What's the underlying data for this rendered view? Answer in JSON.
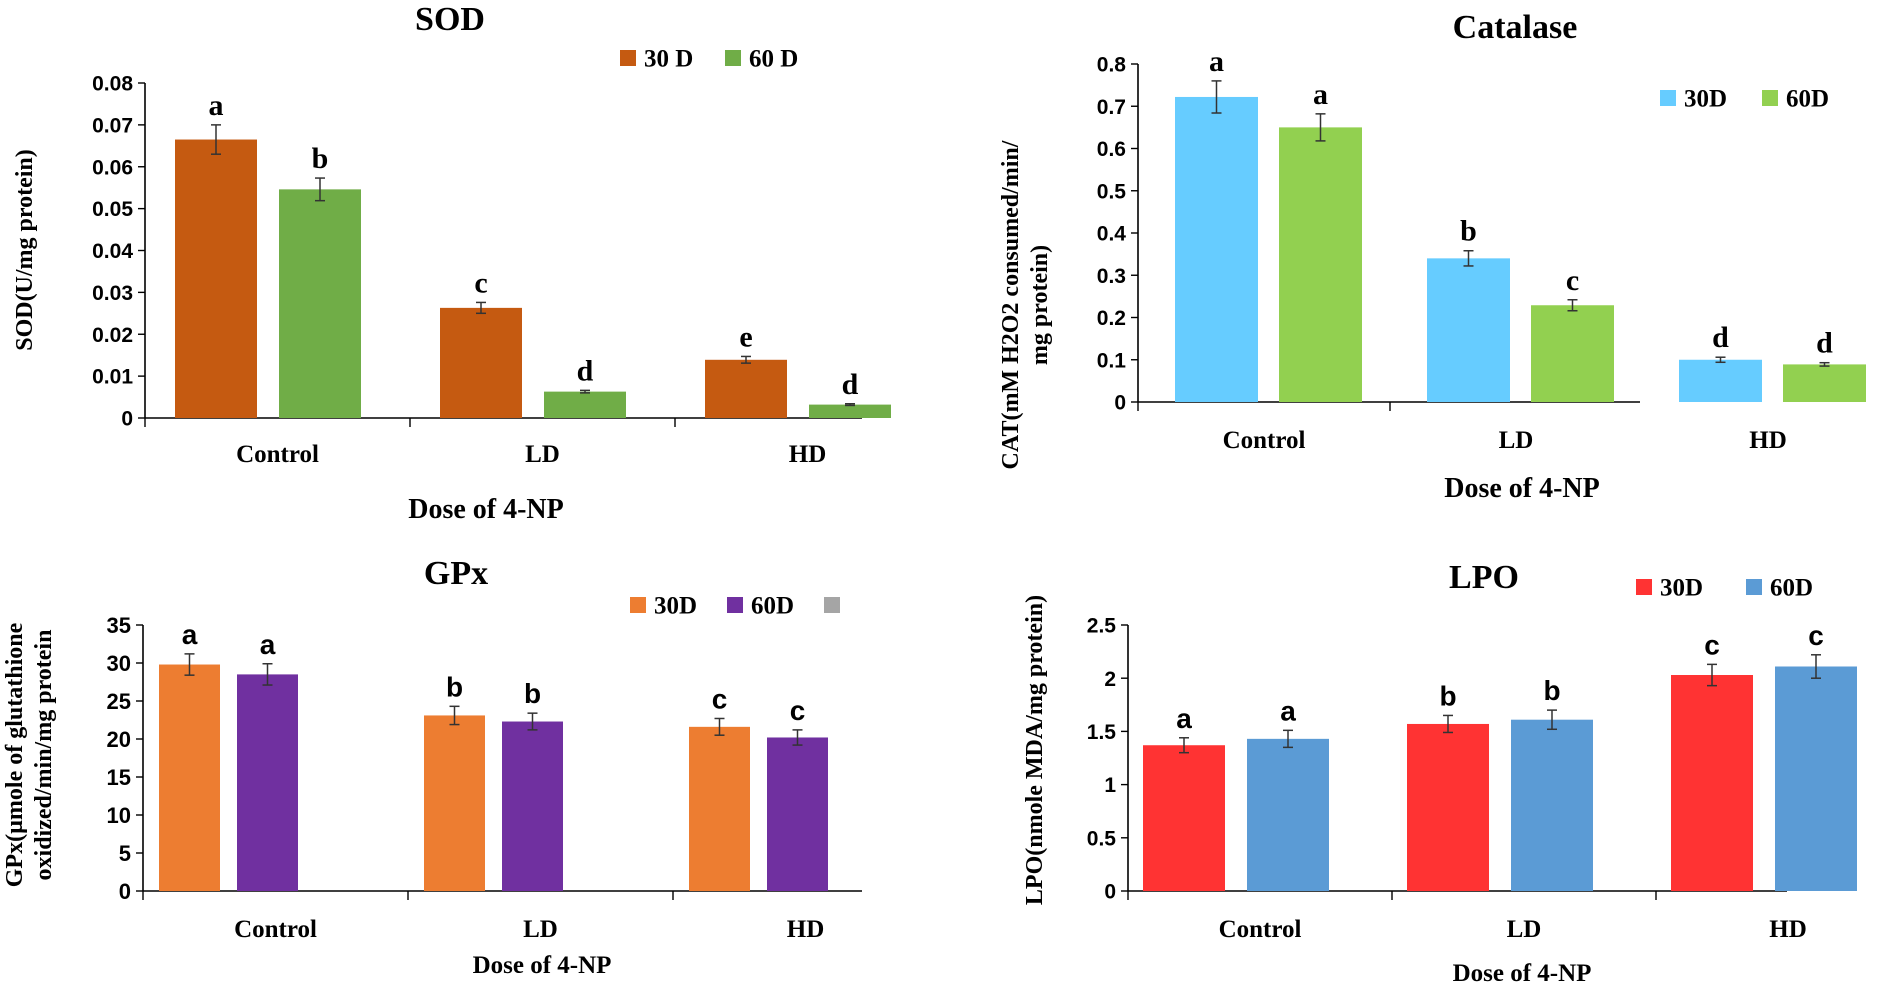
{
  "chart_data": [
    {
      "id": "sod",
      "type": "bar",
      "title": "SOD",
      "xlabel": "Dose of 4-NP",
      "ylabel": "SOD(U/mg protein)",
      "categories": [
        "Control",
        "LD",
        "HD"
      ],
      "ylim": [
        0,
        0.08
      ],
      "yticks": [
        "0",
        "0.01",
        "0.02",
        "0.03",
        "0.04",
        "0.05",
        "0.06",
        "0.07",
        "0.08"
      ],
      "series": [
        {
          "name": "30 D",
          "color": "#C55A11",
          "values": [
            0.0665,
            0.0263,
            0.0139
          ],
          "errors": [
            0.0035,
            0.0013,
            0.0008
          ],
          "letters": [
            "a",
            "c",
            "e"
          ]
        },
        {
          "name": "60 D",
          "color": "#70AD47",
          "values": [
            0.0546,
            0.0063,
            0.0032
          ],
          "errors": [
            0.0027,
            0.0003,
            0.0002
          ],
          "letters": [
            "b",
            "d",
            "d"
          ]
        }
      ],
      "legend": [
        {
          "label": "30 D",
          "color": "#C55A11"
        },
        {
          "label": "60 D",
          "color": "#70AD47"
        }
      ]
    },
    {
      "id": "cat",
      "type": "bar",
      "title": "Catalase",
      "xlabel": "Dose of 4-NP",
      "ylabel": [
        "CAT(mM H2O2 consumed/min/",
        "mg protein)"
      ],
      "categories": [
        "Control",
        "LD",
        "HD"
      ],
      "ylim": [
        0,
        0.8
      ],
      "yticks": [
        "0",
        "0.1",
        "0.2",
        "0.3",
        "0.4",
        "0.5",
        "0.6",
        "0.7",
        "0.8"
      ],
      "series": [
        {
          "name": "30D",
          "color": "#66CCFF",
          "values": [
            0.722,
            0.34,
            0.1
          ],
          "errors": [
            0.038,
            0.018,
            0.006
          ],
          "letters": [
            "a",
            "b",
            "d"
          ]
        },
        {
          "name": "60D",
          "color": "#92D050",
          "values": [
            0.65,
            0.229,
            0.089
          ],
          "errors": [
            0.032,
            0.013,
            0.004
          ],
          "letters": [
            "a",
            "c",
            "d"
          ]
        }
      ],
      "legend": [
        {
          "label": "30D",
          "color": "#66CCFF"
        },
        {
          "label": "60D",
          "color": "#92D050"
        }
      ]
    },
    {
      "id": "gpx",
      "type": "bar",
      "title": "GPx",
      "xlabel": "Dose of 4-NP",
      "ylabel": [
        "GPx(µmole of glutathione",
        "oxidized/min/mg protein"
      ],
      "categories": [
        "Control",
        "LD",
        "HD"
      ],
      "ylim": [
        0,
        35
      ],
      "yticks": [
        "0",
        "5",
        "10",
        "15",
        "20",
        "25",
        "30",
        "35"
      ],
      "series": [
        {
          "name": "30D",
          "color": "#ED7D31",
          "values": [
            29.8,
            23.1,
            21.6
          ],
          "errors": [
            1.4,
            1.2,
            1.1
          ],
          "letters": [
            "a",
            "b",
            "c"
          ]
        },
        {
          "name": "60D",
          "color": "#7030A0",
          "values": [
            28.5,
            22.3,
            20.2
          ],
          "errors": [
            1.4,
            1.1,
            1.0
          ],
          "letters": [
            "a",
            "b",
            "c"
          ]
        }
      ],
      "legend": [
        {
          "label": "30D",
          "color": "#ED7D31"
        },
        {
          "label": "60D",
          "color": "#7030A0"
        },
        {
          "label": "",
          "color": "#A5A5A5"
        }
      ]
    },
    {
      "id": "lpo",
      "type": "bar",
      "title": "LPO",
      "xlabel": "Dose of 4-NP",
      "ylabel": "LPO(nmole MDA/mg protein)",
      "categories": [
        "Control",
        "LD",
        "HD"
      ],
      "ylim": [
        0,
        2.5
      ],
      "yticks": [
        "0",
        "0.5",
        "1",
        "1.5",
        "2",
        "2.5"
      ],
      "series": [
        {
          "name": "30D",
          "color": "#FF3333",
          "values": [
            1.37,
            1.57,
            2.03
          ],
          "errors": [
            0.07,
            0.08,
            0.1
          ],
          "letters": [
            "a",
            "b",
            "c"
          ]
        },
        {
          "name": "60D",
          "color": "#5B9BD5",
          "values": [
            1.43,
            1.61,
            2.11
          ],
          "errors": [
            0.08,
            0.09,
            0.11
          ],
          "letters": [
            "a",
            "b",
            "c"
          ]
        }
      ],
      "legend": [
        {
          "label": "30D",
          "color": "#FF3333"
        },
        {
          "label": "60D",
          "color": "#5B9BD5"
        }
      ]
    }
  ]
}
